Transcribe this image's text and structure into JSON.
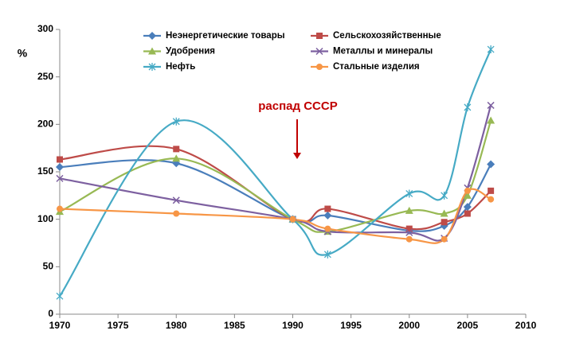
{
  "chart_data": {
    "type": "line",
    "y_label": "%",
    "annotation": "распад СССР",
    "x": [
      1970,
      1980,
      1990,
      1993,
      2000,
      2003,
      2005,
      2007
    ],
    "xlim": [
      1970,
      2010
    ],
    "xticks": [
      1970,
      1975,
      1980,
      1985,
      1990,
      1995,
      2000,
      2005,
      2010
    ],
    "ylim": [
      0,
      300
    ],
    "yticks": [
      0,
      50,
      100,
      150,
      200,
      250,
      300
    ],
    "grid": false,
    "smooth": true,
    "series": [
      {
        "name": "Неэнергетические товары",
        "color": "#4a7ebb",
        "marker": "diamond",
        "values": [
          155,
          159,
          100,
          104,
          88,
          93,
          113,
          158
        ]
      },
      {
        "name": "Сельскохозяйственные",
        "color": "#be4b48",
        "marker": "square",
        "values": [
          163,
          174,
          100,
          111,
          90,
          97,
          106,
          130
        ]
      },
      {
        "name": "Удобрения",
        "color": "#98b954",
        "marker": "triangle",
        "values": [
          108,
          164,
          100,
          87,
          109,
          106,
          125,
          204
        ]
      },
      {
        "name": "Металлы и минералы",
        "color": "#7d60a0",
        "marker": "x",
        "values": [
          143,
          120,
          100,
          87,
          86,
          80,
          133,
          220
        ]
      },
      {
        "name": "Нефть",
        "color": "#46aac5",
        "marker": "star",
        "values": [
          19,
          203,
          100,
          63,
          127,
          125,
          218,
          279
        ]
      },
      {
        "name": "Стальные изделия",
        "color": "#f79646",
        "marker": "circle",
        "values": [
          111,
          106,
          100,
          90,
          79,
          79,
          130,
          121
        ]
      }
    ]
  }
}
